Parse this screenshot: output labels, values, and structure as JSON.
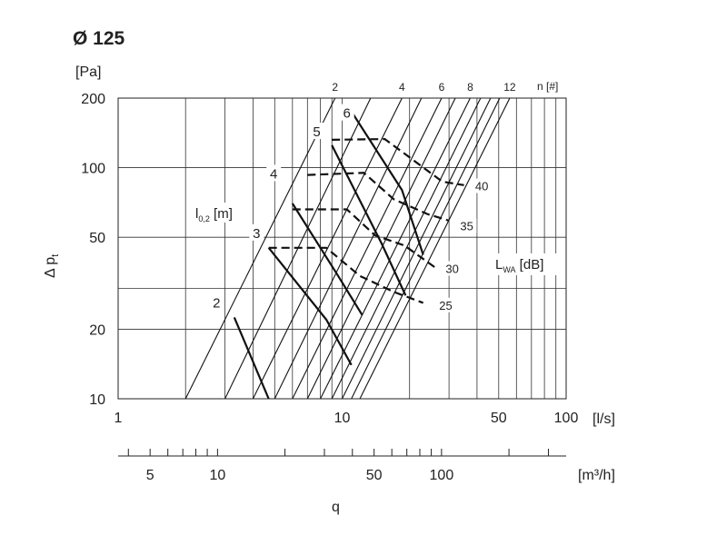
{
  "chart_data": {
    "type": "line",
    "title": "Ø 125",
    "ylabel": "Δ p",
    "ylabel_subscript": "t",
    "yunit": "[Pa]",
    "xunit_ls": "[l/s]",
    "xunit_m3h": "[m³/h]",
    "xlabel": "q",
    "x_scale": "log",
    "y_scale": "log",
    "xlim": [
      1,
      100
    ],
    "ylim": [
      10,
      200
    ],
    "grid": true,
    "yticks": [
      {
        "value": 10,
        "label": "10"
      },
      {
        "value": 20,
        "label": "20"
      },
      {
        "value": 50,
        "label": "50"
      },
      {
        "value": 100,
        "label": "100"
      },
      {
        "value": 200,
        "label": "200"
      }
    ],
    "ygrid_minor": [
      30
    ],
    "xticks": [
      {
        "value": 1,
        "label": "1"
      },
      {
        "value": 10,
        "label": "10"
      },
      {
        "value": 50,
        "label": "50"
      },
      {
        "value": 100,
        "label": "100"
      }
    ],
    "xgrid": [
      2,
      3,
      4,
      5,
      6,
      7,
      8,
      9,
      10,
      20,
      30,
      40,
      50,
      60,
      70,
      80,
      90,
      100
    ],
    "m3h_ticks_major": [
      {
        "value": 5,
        "label": "5"
      },
      {
        "value": 10,
        "label": "10"
      },
      {
        "value": 50,
        "label": "50"
      },
      {
        "value": 100,
        "label": "100"
      }
    ],
    "m3h_ticks_minor": [
      4,
      6,
      7,
      8,
      9,
      20,
      30,
      40,
      60,
      70,
      80,
      90,
      200,
      300
    ],
    "n_unit": "n [#]",
    "n_lines": [
      {
        "label": "2",
        "q_at_10": 2,
        "q_at_200": 9.3
      },
      {
        "label": "",
        "q_at_10": 3,
        "q_at_200": 13.4
      },
      {
        "label": "4",
        "q_at_10": 4,
        "q_at_200": 18.5
      },
      {
        "label": "",
        "q_at_10": 5,
        "q_at_200": 22.6
      },
      {
        "label": "6",
        "q_at_10": 6,
        "q_at_200": 27.8
      },
      {
        "label": "",
        "q_at_10": 7,
        "q_at_200": 32.0
      },
      {
        "label": "8",
        "q_at_10": 8,
        "q_at_200": 37.3
      },
      {
        "label": "",
        "q_at_10": 9,
        "q_at_200": 41.5
      },
      {
        "label": "",
        "q_at_10": 10,
        "q_at_200": 46.0
      },
      {
        "label": "",
        "q_at_10": 11,
        "q_at_200": 50.5
      },
      {
        "label": "12",
        "q_at_10": 12,
        "q_at_200": 56.0
      }
    ],
    "throw_unit_base": "l",
    "throw_unit_sub": "0,2",
    "throw_unit_tail": " [m]",
    "throw_lines": [
      {
        "label": "2",
        "points": [
          [
            3.3,
            22.5
          ],
          [
            4.7,
            10
          ]
        ]
      },
      {
        "label": "3",
        "points": [
          [
            4.7,
            45
          ],
          [
            8.5,
            22
          ],
          [
            11.0,
            14
          ]
        ]
      },
      {
        "label": "4",
        "points": [
          [
            6.0,
            70
          ],
          [
            9.6,
            34
          ],
          [
            12.3,
            23
          ]
        ]
      },
      {
        "label": "5",
        "points": [
          [
            9.0,
            125
          ],
          [
            15.0,
            47
          ],
          [
            19.2,
            28
          ]
        ]
      },
      {
        "label": "6",
        "points": [
          [
            10.8,
            180
          ],
          [
            18.5,
            80
          ],
          [
            23.0,
            42
          ]
        ]
      }
    ],
    "throw_label_anchor": [
      {
        "label": "2",
        "at": [
          2.75,
          26
        ]
      },
      {
        "label": "3",
        "at": [
          4.15,
          52
        ]
      },
      {
        "label": "4",
        "at": [
          4.95,
          94
        ]
      },
      {
        "label": "5",
        "at": [
          7.7,
          143
        ]
      },
      {
        "label": "6",
        "at": [
          10.5,
          172
        ]
      }
    ],
    "sound_unit_base": "L",
    "sound_unit_sub": "WA",
    "sound_unit_tail": " [dB]",
    "sound_lines": [
      {
        "label": "25",
        "points": [
          [
            4.7,
            45
          ],
          [
            8.5,
            45
          ],
          [
            12.0,
            34
          ],
          [
            17.0,
            29
          ],
          [
            23.0,
            26
          ]
        ]
      },
      {
        "label": "30",
        "points": [
          [
            6.0,
            66
          ],
          [
            10.5,
            66
          ],
          [
            14.0,
            51
          ],
          [
            19.0,
            46
          ],
          [
            26.0,
            37
          ]
        ]
      },
      {
        "label": "35",
        "points": [
          [
            7.0,
            93
          ],
          [
            12.5,
            95
          ],
          [
            17.0,
            73
          ],
          [
            24.0,
            63
          ],
          [
            30.0,
            59
          ]
        ]
      },
      {
        "label": "40",
        "points": [
          [
            9.0,
            132
          ],
          [
            15.5,
            133
          ],
          [
            21.0,
            107
          ],
          [
            28.0,
            87
          ],
          [
            35.0,
            84
          ]
        ]
      }
    ],
    "sound_label_anchor": [
      {
        "label": "25",
        "at": [
          29.0,
          25
        ]
      },
      {
        "label": "30",
        "at": [
          31.0,
          36
        ]
      },
      {
        "label": "35",
        "at": [
          36.0,
          55
        ]
      },
      {
        "label": "40",
        "at": [
          42.0,
          82
        ]
      }
    ]
  }
}
